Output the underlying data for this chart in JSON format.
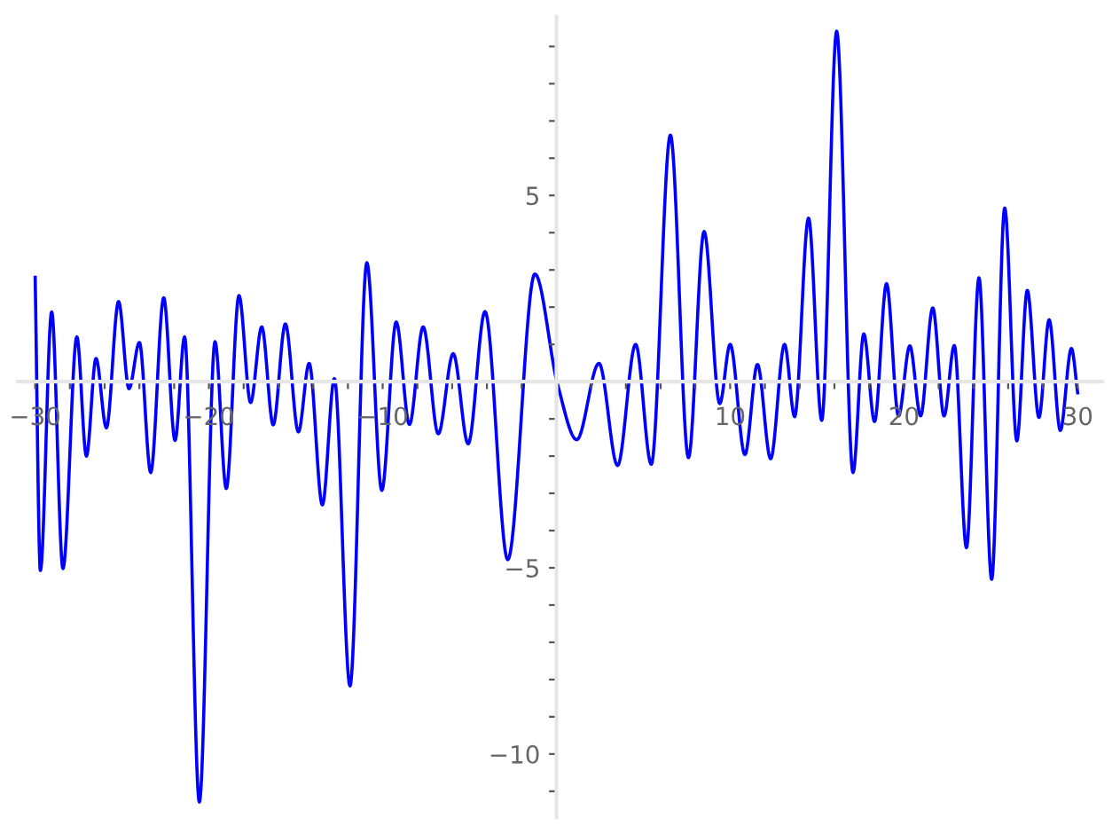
{
  "chart_data": {
    "type": "line",
    "xlim": [
      -31,
      31.4
    ],
    "ylim": [
      -11.7,
      9.8
    ],
    "xticks": [
      {
        "value": -30,
        "label": "−30"
      },
      {
        "value": -28,
        "label": null
      },
      {
        "value": -26,
        "label": null
      },
      {
        "value": -24,
        "label": null
      },
      {
        "value": -22,
        "label": null
      },
      {
        "value": -20,
        "label": "−20"
      },
      {
        "value": -18,
        "label": null
      },
      {
        "value": -16,
        "label": null
      },
      {
        "value": -14,
        "label": null
      },
      {
        "value": -12,
        "label": null
      },
      {
        "value": -10,
        "label": "−10"
      },
      {
        "value": -8,
        "label": null
      },
      {
        "value": -6,
        "label": null
      },
      {
        "value": -4,
        "label": null
      },
      {
        "value": -2,
        "label": null
      },
      {
        "value": 2,
        "label": null
      },
      {
        "value": 4,
        "label": null
      },
      {
        "value": 6,
        "label": null
      },
      {
        "value": 8,
        "label": null
      },
      {
        "value": 10,
        "label": "10"
      },
      {
        "value": 12,
        "label": null
      },
      {
        "value": 14,
        "label": null
      },
      {
        "value": 16,
        "label": null
      },
      {
        "value": 18,
        "label": null
      },
      {
        "value": 20,
        "label": "20"
      },
      {
        "value": 22,
        "label": null
      },
      {
        "value": 24,
        "label": null
      },
      {
        "value": 26,
        "label": null
      },
      {
        "value": 28,
        "label": null
      },
      {
        "value": 30,
        "label": "30"
      }
    ],
    "yticks": [
      {
        "value": -11,
        "label": null
      },
      {
        "value": -10,
        "label": "−10"
      },
      {
        "value": -9,
        "label": null
      },
      {
        "value": -8,
        "label": null
      },
      {
        "value": -7,
        "label": null
      },
      {
        "value": -6,
        "label": null
      },
      {
        "value": -5,
        "label": "−5"
      },
      {
        "value": -4,
        "label": null
      },
      {
        "value": -3,
        "label": null
      },
      {
        "value": -2,
        "label": null
      },
      {
        "value": -1,
        "label": null
      },
      {
        "value": 1,
        "label": null
      },
      {
        "value": 2,
        "label": null
      },
      {
        "value": 3,
        "label": null
      },
      {
        "value": 4,
        "label": null
      },
      {
        "value": 5,
        "label": "5"
      },
      {
        "value": 6,
        "label": null
      },
      {
        "value": 7,
        "label": null
      },
      {
        "value": 8,
        "label": null
      },
      {
        "value": 9,
        "label": null
      }
    ],
    "grid": false,
    "marker": "none",
    "line_style": "solid",
    "series": [
      {
        "color": "#0000ff",
        "x": [
          -30,
          -29.7,
          -29.05,
          -28.4,
          -27.6,
          -27.05,
          -26.5,
          -25.9,
          -25.2,
          -24.6,
          -24.0,
          -23.35,
          -22.6,
          -21.95,
          -21.4,
          -20.55,
          -19.65,
          -19.0,
          -18.27,
          -17.6,
          -16.96,
          -16.3,
          -15.6,
          -14.85,
          -14.23,
          -13.47,
          -12.78,
          -11.88,
          -10.91,
          -10.05,
          -9.22,
          -8.46,
          -7.67,
          -6.8,
          -5.94,
          -5.08,
          -4.11,
          -2.8,
          -1.24,
          0.07,
          1.17,
          2.45,
          3.52,
          4.56,
          5.46,
          6.56,
          7.6,
          8.5,
          9.4,
          10.0,
          10.85,
          11.57,
          12.33,
          13.13,
          13.71,
          14.51,
          15.27,
          16.13,
          17.07,
          17.69,
          18.31,
          19.0,
          19.69,
          20.34,
          20.96,
          21.66,
          22.31,
          22.9,
          23.6,
          24.32,
          25.05,
          25.8,
          26.5,
          27.1,
          27.77,
          28.36,
          29.0,
          29.64,
          30
        ],
        "values": [
          2.8,
          -5.07,
          1.87,
          -5.02,
          1.2,
          -2.0,
          0.62,
          -1.24,
          2.15,
          -0.19,
          1.05,
          -2.44,
          2.25,
          -1.58,
          1.2,
          -11.29,
          1.07,
          -2.87,
          2.31,
          -0.56,
          1.47,
          -1.16,
          1.55,
          -1.35,
          0.49,
          -3.31,
          0.08,
          -8.17,
          3.19,
          -2.92,
          1.6,
          -1.15,
          1.47,
          -1.4,
          0.75,
          -1.67,
          1.88,
          -4.78,
          2.89,
          -0.08,
          -1.56,
          0.49,
          -2.25,
          1.0,
          -2.22,
          6.62,
          -2.04,
          4.03,
          -0.59,
          1.0,
          -1.96,
          0.46,
          -2.07,
          1.0,
          -0.94,
          4.39,
          -1.04,
          9.41,
          -2.44,
          1.28,
          -1.07,
          2.63,
          -0.92,
          0.96,
          -0.92,
          1.98,
          -0.92,
          0.97,
          -4.46,
          2.79,
          -5.31,
          4.66,
          -1.59,
          2.45,
          -0.96,
          1.66,
          -1.31,
          0.89,
          -0.3
        ]
      }
    ]
  }
}
